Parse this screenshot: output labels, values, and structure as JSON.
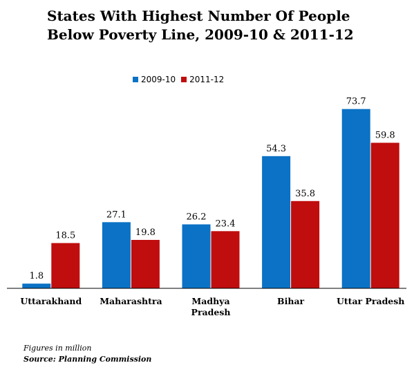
{
  "chart_data": {
    "type": "bar",
    "title": "States With Highest Number Of People Below Poverty Line, 2009-10 & 2011-12",
    "categories": [
      "Uttarakhand",
      "Maharashtra",
      "Madhya Pradesh",
      "Bihar",
      "Uttar Pradesh"
    ],
    "series": [
      {
        "name": "2009-10",
        "values": [
          1.8,
          27.1,
          26.2,
          54.3,
          73.7
        ],
        "labels": [
          "1.8",
          "27.1",
          "26.2",
          "54.3",
          "73.7"
        ],
        "color": "#0b72c5"
      },
      {
        "name": "2011-12",
        "values": [
          18.5,
          19.8,
          23.4,
          35.8,
          59.8
        ],
        "labels": [
          "18.5",
          "19.8",
          "23.4",
          "35.8",
          "59.8"
        ],
        "color": "#c00d0d"
      }
    ],
    "ylim": [
      0,
      80
    ],
    "grid": false,
    "legend_position": "top"
  },
  "footnote": "Figures in million",
  "source": "Source: Planning Commission"
}
